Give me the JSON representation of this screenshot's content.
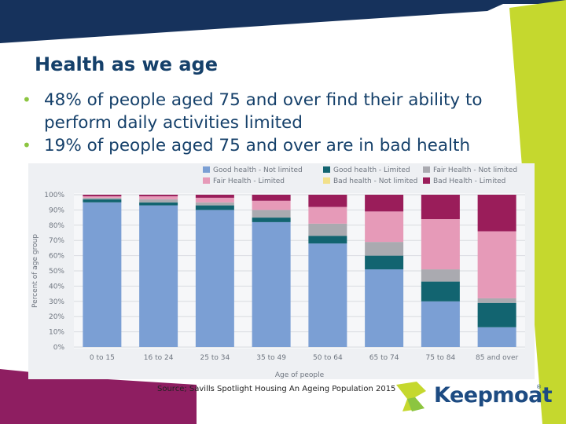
{
  "slide": {
    "title": "Health as we age",
    "bullets": [
      "48%  of people aged 75 and over find their ability to perform daily activities limited",
      "19% of people aged 75 and over are in bad health"
    ],
    "source": "Source; Savills Spotlight Housing An Ageing Population 2015",
    "logo_text": "Keepmoat",
    "logo_reg": "®",
    "colors": {
      "title": "#15406a",
      "bullet": "#8cc540",
      "top_band": "#16325c",
      "lime": "#c5d82e",
      "magenta": "#8e1e61"
    }
  },
  "chart_data": {
    "type": "bar",
    "stacked": true,
    "categories": [
      "0 to 15",
      "16 to 24",
      "25 to 34",
      "35 to 49",
      "50 to 64",
      "65 to 74",
      "75 to 84",
      "85 and over"
    ],
    "xlabel": "Age of people",
    "ylabel": "Percent of age group",
    "ylim": [
      0,
      100
    ],
    "yticks": [
      "0%",
      "10%",
      "20%",
      "30%",
      "40%",
      "50%",
      "60%",
      "70%",
      "80%",
      "90%",
      "100%"
    ],
    "legend_position": "top",
    "series": [
      {
        "name": "Good health - Not limited",
        "color": "#7b9fd4",
        "values": [
          95,
          93,
          90,
          82,
          68,
          51,
          30,
          13
        ]
      },
      {
        "name": "Good health - Limited",
        "color": "#126470",
        "values": [
          2,
          2,
          3,
          3,
          5,
          9,
          13,
          16
        ]
      },
      {
        "name": "Fair Health - Not limited",
        "color": "#aaaab0",
        "values": [
          1,
          2,
          2,
          5,
          8,
          9,
          8,
          3
        ]
      },
      {
        "name": "Fair Health - Limited",
        "color": "#e69ab8",
        "values": [
          1,
          2,
          3,
          6,
          11,
          20,
          33,
          44
        ]
      },
      {
        "name": "Bad health - Not limited",
        "color": "#f2e08a",
        "values": [
          0,
          0,
          0,
          0,
          0,
          0,
          0,
          0
        ]
      },
      {
        "name": "Bad Health - Limited",
        "color": "#9a1d5a",
        "values": [
          1,
          1,
          2,
          4,
          8,
          11,
          16,
          24
        ]
      }
    ]
  }
}
